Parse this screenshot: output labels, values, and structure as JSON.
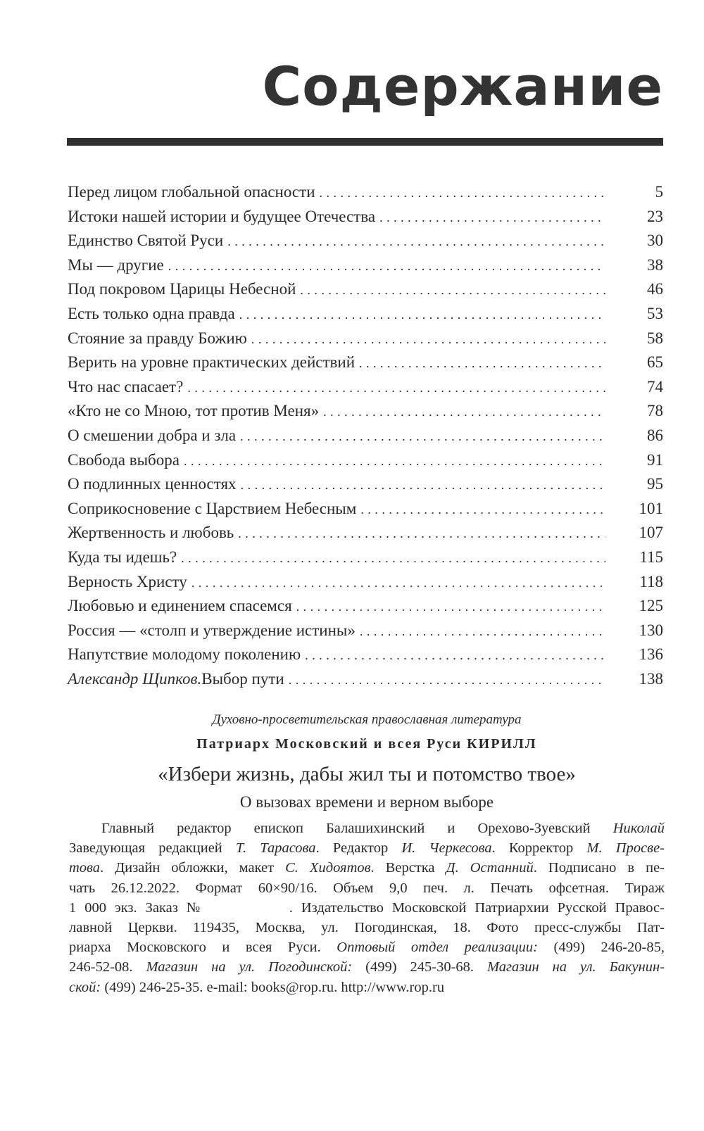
{
  "title": "Содержание",
  "toc": [
    {
      "author": "",
      "title": "Перед лицом глобальной опасности",
      "page": "5"
    },
    {
      "author": "",
      "title": "Истоки нашей истории и будущее Отечества",
      "page": "23"
    },
    {
      "author": "",
      "title": "Единство Святой Руси",
      "page": "30"
    },
    {
      "author": "",
      "title": "Мы — другие",
      "page": "38"
    },
    {
      "author": "",
      "title": "Под покровом Царицы Небесной",
      "page": "46"
    },
    {
      "author": "",
      "title": "Есть только одна правда",
      "page": "53"
    },
    {
      "author": "",
      "title": "Стояние за правду Божию",
      "page": "58"
    },
    {
      "author": "",
      "title": "Верить на уровне практических действий",
      "page": "65"
    },
    {
      "author": "",
      "title": "Что нас спасает?",
      "page": "74"
    },
    {
      "author": "",
      "title": "«Кто не со Мною, тот против Меня»",
      "page": "78"
    },
    {
      "author": "",
      "title": "О смешении добра и зла",
      "page": "86"
    },
    {
      "author": "",
      "title": "Свобода выбора",
      "page": "91"
    },
    {
      "author": "",
      "title": "О подлинных ценностях",
      "page": "95"
    },
    {
      "author": "",
      "title": "Соприкосновение с Царствием Небесным",
      "page": "101"
    },
    {
      "author": "",
      "title": "Жертвенность и любовь",
      "page": "107"
    },
    {
      "author": "",
      "title": "Куда ты идешь?",
      "page": "115"
    },
    {
      "author": "",
      "title": "Верность Христу",
      "page": "118"
    },
    {
      "author": "",
      "title": "Любовью и единением спасемся",
      "page": "125"
    },
    {
      "author": "",
      "title": "Россия — «столп и утверждение истины»",
      "page": "130"
    },
    {
      "author": "",
      "title": "Напутствие молодому поколению",
      "page": "136"
    },
    {
      "author": "Александр Щипков.",
      "title": " Выбор пути",
      "page": "138"
    }
  ],
  "imprint": {
    "series": "Духовно-просветительская православная литература",
    "author": "Патриарх Московский и всея Руси КИРИЛЛ",
    "book_title": "«Избери жизнь, дабы жил ты и потомство твое»",
    "subtitle": "О вызовах времени и верном выборе"
  },
  "colophon": [
    [
      {
        "t": "Главный редактор епископ Балашихинский и Орехово-Зуевский "
      },
      {
        "t": "Николай",
        "i": true
      }
    ],
    [
      {
        "t": "Заведующая редакцией "
      },
      {
        "t": "Т. Тарасова",
        "i": true
      },
      {
        "t": ". Редактор "
      },
      {
        "t": "И. Черкесова",
        "i": true
      },
      {
        "t": ". Корректор "
      },
      {
        "t": "М. Просве-",
        "i": true
      }
    ],
    [
      {
        "t": "това",
        "i": true
      },
      {
        "t": ". Дизайн обложки, макет "
      },
      {
        "t": "С. Хидоятов",
        "i": true
      },
      {
        "t": ". Верстка "
      },
      {
        "t": "Д. Останний",
        "i": true
      },
      {
        "t": ". Подписано в пе-"
      }
    ],
    [
      {
        "t": "чать 26.12.2022. Формат 60×90/16. Объем 9,0 печ. л. Печать офсетная. Тираж"
      }
    ],
    [
      {
        "t": "1 000 экз. Заказ №          . Издательство Московской Патриархии Русской Правос-"
      }
    ],
    [
      {
        "t": "лавной Церкви. 119435, Москва, ул. Погодинская, 18. Фото пресс-службы Пат-"
      }
    ],
    [
      {
        "t": "риарха Московского и всея Руси. "
      },
      {
        "t": "Оптовый отдел реализации:",
        "i": true
      },
      {
        "t": " (499) 246-20-85,"
      }
    ],
    [
      {
        "t": "246-52-08. "
      },
      {
        "t": "Магазин на ул. Погодинской:",
        "i": true
      },
      {
        "t": " (499) 245-30-68. "
      },
      {
        "t": "Магазин на ул. Бакунин-",
        "i": true
      }
    ],
    [
      {
        "t": "ской:",
        "i": true
      },
      {
        "t": " (499) 246-25-35. e-mail: books@rop.ru. http://www.rop.ru"
      }
    ]
  ]
}
